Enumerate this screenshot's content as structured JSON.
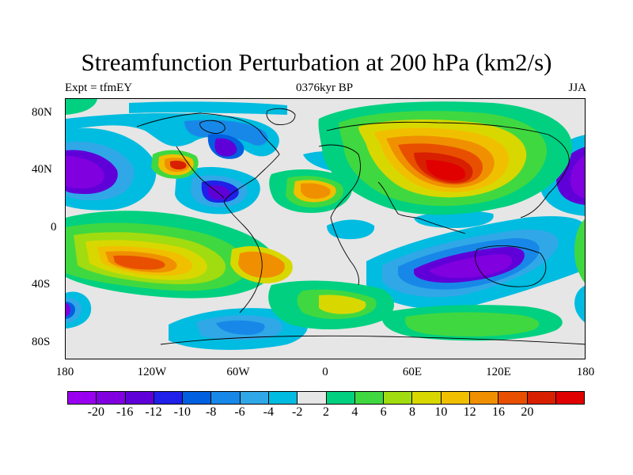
{
  "title": "Streamfunction Perturbation at 200 hPa (km2/s)",
  "subtitle_left": "Expt = tfmEY",
  "subtitle_center": "0376kyr BP",
  "subtitle_right": "JJA",
  "y_ticks": [
    "80N",
    "40N",
    "0",
    "40S",
    "80S"
  ],
  "x_ticks": [
    "180",
    "120W",
    "60W",
    "0",
    "60E",
    "120E",
    "180"
  ],
  "colorbar": {
    "colors": [
      "#9a00f0",
      "#8000e0",
      "#6000d8",
      "#2020e8",
      "#0060e0",
      "#1888e8",
      "#30a8e8",
      "#00bce0",
      "#e6e6e6",
      "#00d080",
      "#40d840",
      "#a0dc10",
      "#d8d800",
      "#f0c000",
      "#f09000",
      "#e85000",
      "#d82000",
      "#e00000"
    ],
    "labels": [
      "-20",
      "-16",
      "-12",
      "-10",
      "-8",
      "-6",
      "-4",
      "-2",
      "2",
      "4",
      "6",
      "8",
      "10",
      "12",
      "16",
      "20"
    ]
  }
}
